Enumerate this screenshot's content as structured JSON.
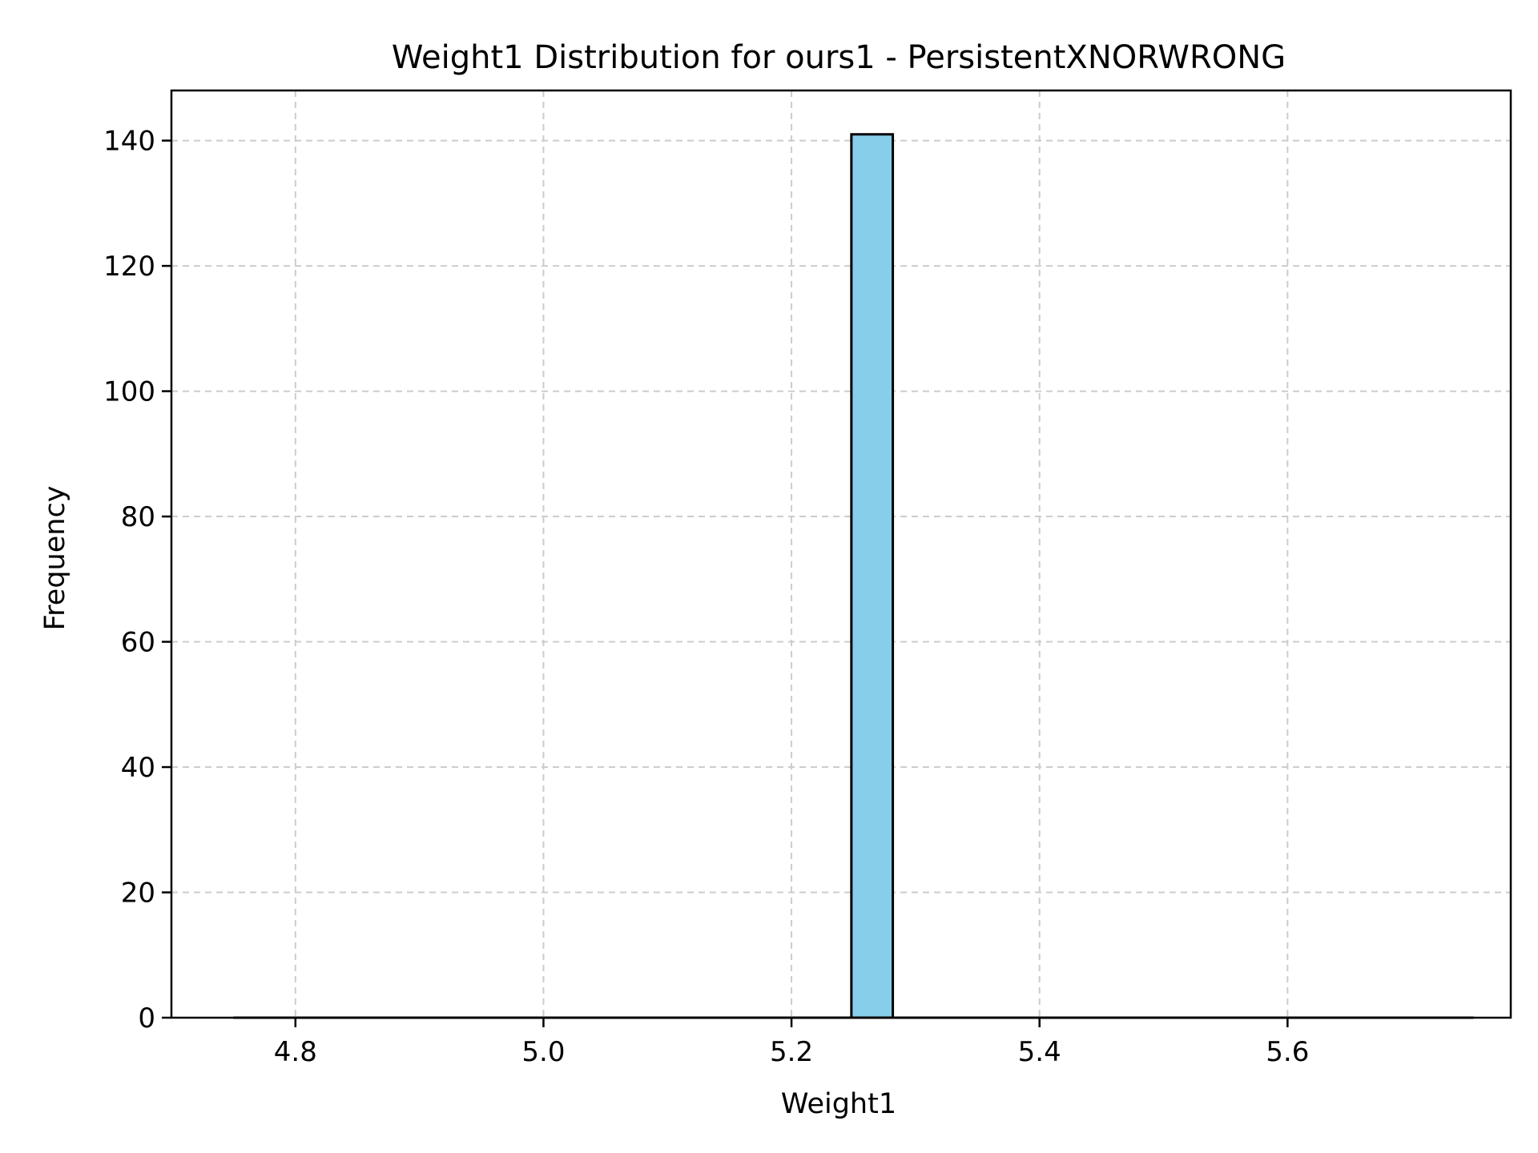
{
  "chart_data": {
    "type": "bar",
    "title": "Weight1 Distribution for ours1 - PersistentXNORWRONG",
    "xlabel": "Weight1",
    "ylabel": "Frequency",
    "xlim": [
      4.7,
      5.78
    ],
    "ylim": [
      0,
      148
    ],
    "xticks": [
      4.8,
      5.0,
      5.2,
      5.4,
      5.6
    ],
    "xtick_labels": [
      "4.8",
      "5.0",
      "5.2",
      "5.4",
      "5.6"
    ],
    "yticks": [
      0,
      20,
      40,
      60,
      80,
      100,
      120,
      140
    ],
    "ytick_labels": [
      "0",
      "20",
      "40",
      "60",
      "80",
      "100",
      "120",
      "140"
    ],
    "bin_range": [
      4.75,
      5.75
    ],
    "bins": [
      {
        "x0": 5.2483,
        "x1": 5.2817,
        "count": 141
      }
    ],
    "grid": true,
    "bar_fill": "#87ceeb",
    "bar_edge": "#000000",
    "grid_color": "#cccccc"
  }
}
